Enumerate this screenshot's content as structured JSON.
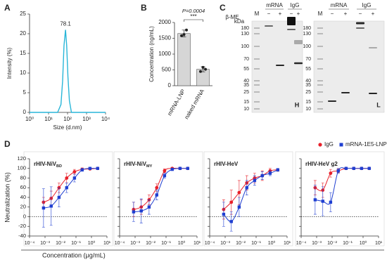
{
  "panels": [
    "A",
    "B",
    "C",
    "D"
  ],
  "chart_data": [
    {
      "type": "line",
      "annotation": "78.1",
      "xlabel": "Size (d.nm)",
      "ylabel": "Intensity (%)",
      "x": [
        1,
        30,
        45,
        55,
        65,
        78.1,
        90,
        105,
        125,
        160,
        10000
      ],
      "values": [
        0,
        0,
        2,
        8,
        17,
        21,
        17,
        9,
        3,
        0,
        0
      ],
      "color": "#29b6d8",
      "xscale": "log",
      "xlim": [
        1,
        10000
      ],
      "xticks": [
        {
          "value": 1,
          "label": "10⁰"
        },
        {
          "value": 10,
          "label": "10¹"
        },
        {
          "value": 100,
          "label": "10²"
        },
        {
          "value": 1000,
          "label": "10³"
        },
        {
          "value": 10000,
          "label": "10⁴"
        }
      ],
      "ylim": [
        0,
        25
      ],
      "yticks": [
        0,
        5,
        10,
        15,
        20,
        25
      ]
    },
    {
      "type": "bar",
      "ylabel": "Concentration (ng/mL)",
      "categories": [
        "mRNA-LNP",
        "naked mRNA"
      ],
      "values": [
        1650,
        520
      ],
      "errors": [
        110,
        80
      ],
      "points": [
        [
          1580,
          1620,
          1760
        ],
        [
          450,
          580,
          520
        ]
      ],
      "color": "#d6d6d6",
      "ylim": [
        0,
        2000
      ],
      "yticks": [
        0,
        500,
        1000,
        1500,
        2000
      ],
      "annotations": [
        "P=0.0004",
        "***"
      ]
    },
    {
      "type": "scatter",
      "title": "rHIV-NiV",
      "title_sub": "BD",
      "ylabel": "Neutralization (%)",
      "xlabel": "Concentration (μg/mL)",
      "legend": "top-right",
      "curve": true,
      "ytick_labels": true,
      "x": [
        0.0008,
        0.0025,
        0.008,
        0.025,
        0.08,
        0.25,
        0.8,
        2.5
      ],
      "series": [
        {
          "name": "IgG",
          "color": "#e8202a",
          "marker": "circle",
          "values": [
            30,
            38,
            60,
            80,
            93,
            98,
            99,
            100
          ],
          "errors": [
            10,
            15,
            10,
            10,
            5,
            3,
            2,
            1
          ]
        },
        {
          "name": "mRNA-1E5-LNP",
          "color": "#1f3fd1",
          "marker": "square",
          "values": [
            18,
            22,
            40,
            60,
            80,
            97,
            100,
            100
          ],
          "errors": [
            40,
            40,
            20,
            10,
            8,
            3,
            2,
            1
          ]
        }
      ],
      "xscale": "log",
      "xlim": [
        0.0001,
        10
      ],
      "xticks": [
        {
          "value": 0.0001,
          "label": "10⁻⁴"
        },
        {
          "value": 0.001,
          "label": "10⁻³"
        },
        {
          "value": 0.01,
          "label": "10⁻²"
        },
        {
          "value": 0.1,
          "label": "10⁻¹"
        },
        {
          "value": 1,
          "label": "10⁰"
        },
        {
          "value": 10,
          "label": "10¹"
        }
      ],
      "ylim": [
        -40,
        120
      ],
      "yticks": [
        -40,
        -20,
        0,
        20,
        40,
        60,
        80,
        100,
        120
      ]
    },
    {
      "type": "scatter",
      "title": "rHIV-NiV",
      "title_sub": "MY",
      "curve": true,
      "ytick_labels": false,
      "x": [
        0.0008,
        0.0025,
        0.008,
        0.025,
        0.08,
        0.25,
        0.8,
        2.5
      ],
      "series": [
        {
          "name": "IgG",
          "color": "#e8202a",
          "marker": "circle",
          "values": [
            15,
            20,
            35,
            60,
            95,
            100,
            100,
            100
          ],
          "errors": [
            15,
            15,
            10,
            8,
            4,
            2,
            1,
            1
          ]
        },
        {
          "name": "mRNA-1E5-LNP",
          "color": "#1f3fd1",
          "marker": "square",
          "values": [
            10,
            12,
            20,
            45,
            85,
            98,
            100,
            100
          ],
          "errors": [
            20,
            25,
            15,
            10,
            5,
            2,
            1,
            1
          ]
        }
      ],
      "xscale": "log",
      "xlim": [
        0.0001,
        10
      ],
      "xticks": [
        {
          "value": 0.0001,
          "label": "10⁻⁴"
        },
        {
          "value": 0.001,
          "label": "10⁻³"
        },
        {
          "value": 0.01,
          "label": "10⁻²"
        },
        {
          "value": 0.1,
          "label": "10⁻¹"
        },
        {
          "value": 1,
          "label": "10⁰"
        },
        {
          "value": 10,
          "label": "10¹"
        }
      ],
      "ylim": [
        -40,
        120
      ],
      "yticks": [
        -40,
        -20,
        0,
        20,
        40,
        60,
        80,
        100,
        120
      ]
    },
    {
      "type": "scatter",
      "title": "rHIV-HeV",
      "curve": true,
      "ytick_labels": false,
      "x": [
        0.0008,
        0.0025,
        0.008,
        0.025,
        0.08,
        0.25,
        0.8,
        2.5
      ],
      "series": [
        {
          "name": "IgG",
          "color": "#e8202a",
          "marker": "circle",
          "values": [
            15,
            30,
            50,
            70,
            80,
            85,
            95,
            97
          ],
          "errors": [
            20,
            25,
            25,
            15,
            10,
            10,
            5,
            3
          ]
        },
        {
          "name": "mRNA-1E5-LNP",
          "color": "#1f3fd1",
          "marker": "square",
          "values": [
            5,
            -10,
            20,
            60,
            75,
            85,
            90,
            97
          ],
          "errors": [
            25,
            20,
            20,
            15,
            10,
            8,
            5,
            3
          ]
        }
      ],
      "xscale": "log",
      "xlim": [
        0.0001,
        10
      ],
      "xticks": [
        {
          "value": 0.0001,
          "label": "10⁻⁴"
        },
        {
          "value": 0.001,
          "label": "10⁻³"
        },
        {
          "value": 0.01,
          "label": "10⁻²"
        },
        {
          "value": 0.1,
          "label": "10⁻¹"
        },
        {
          "value": 1,
          "label": "10⁰"
        },
        {
          "value": 10,
          "label": "10¹"
        }
      ],
      "ylim": [
        -40,
        120
      ],
      "yticks": [
        -40,
        -20,
        0,
        20,
        40,
        60,
        80,
        100,
        120
      ]
    },
    {
      "type": "scatter",
      "title": "rHIV-HeV g2",
      "curve": true,
      "ytick_labels": false,
      "x": [
        0.0008,
        0.0025,
        0.008,
        0.025,
        0.08,
        0.25,
        0.8,
        2.5
      ],
      "series": [
        {
          "name": "IgG",
          "color": "#e8202a",
          "marker": "circle",
          "values": [
            60,
            55,
            90,
            95,
            100,
            100,
            100,
            100
          ],
          "errors": [
            15,
            15,
            8,
            4,
            2,
            1,
            1,
            1
          ]
        },
        {
          "name": "mRNA-1E5-LNP",
          "color": "#1f3fd1",
          "marker": "square",
          "values": [
            35,
            32,
            30,
            95,
            100,
            100,
            100,
            100
          ],
          "errors": [
            30,
            30,
            20,
            5,
            2,
            1,
            1,
            1
          ]
        }
      ],
      "xscale": "log",
      "xlim": [
        0.0001,
        10
      ],
      "xticks": [
        {
          "value": 0.0001,
          "label": "10⁻⁴"
        },
        {
          "value": 0.001,
          "label": "10⁻³"
        },
        {
          "value": 0.01,
          "label": "10⁻²"
        },
        {
          "value": 0.1,
          "label": "10⁻¹"
        },
        {
          "value": 1,
          "label": "10⁰"
        },
        {
          "value": 10,
          "label": "10¹"
        }
      ],
      "ylim": [
        -40,
        120
      ],
      "yticks": [
        -40,
        -20,
        0,
        20,
        40,
        60,
        80,
        100,
        120
      ]
    }
  ],
  "gel": {
    "beta_me": "β-ME",
    "kda": "kDa",
    "left": {
      "marker": "M",
      "groups": [
        "mRNA",
        "IgG"
      ],
      "signs": [
        "−",
        "+",
        "−",
        "+"
      ],
      "mw": [
        "180",
        "130",
        "100",
        "70",
        "55",
        "40",
        "35",
        "25",
        "15",
        "10"
      ],
      "chain": "H"
    },
    "right": {
      "marker": "M",
      "groups": [
        "mRNA",
        "IgG"
      ],
      "signs": [
        "−",
        "+",
        "−",
        "+"
      ],
      "mw": [
        "180",
        "130",
        "100",
        "70",
        "55",
        "40",
        "35",
        "25",
        "15",
        "10"
      ],
      "chain": "L"
    }
  }
}
